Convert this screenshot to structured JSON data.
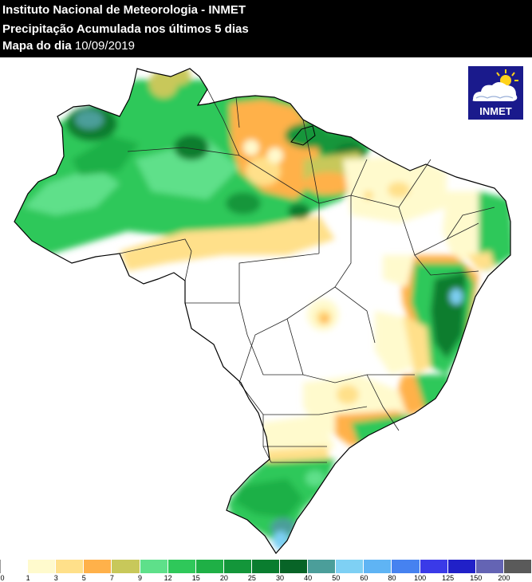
{
  "header": {
    "line1": "Instituto Nacional de Meteorologia - INMET",
    "line2": "Precipitação Acumulada nos últimos 5 dias",
    "line3_label": "Mapa do dia",
    "line3_date": "10/09/2019"
  },
  "logo": {
    "text": "INMET",
    "icon": "sun-cloud-icon",
    "bg": "#1a1a8c"
  },
  "legend": {
    "colors": [
      "#ffffff",
      "#fffacd",
      "#ffe08a",
      "#ffb14a",
      "#c8c85a",
      "#5ee08a",
      "#2fc85a",
      "#1fb046",
      "#13963a",
      "#0a7d2f",
      "#086427",
      "#4b9e9a",
      "#7ed0f4",
      "#5fb4f4",
      "#4682f0",
      "#3a3ae8",
      "#2020c8",
      "#6464b4",
      "#5a5a5a"
    ],
    "labels": [
      "0",
      "1",
      "3",
      "5",
      "7",
      "9",
      "12",
      "15",
      "20",
      "25",
      "30",
      "40",
      "50",
      "60",
      "80",
      "100",
      "125",
      "150",
      "200"
    ]
  }
}
